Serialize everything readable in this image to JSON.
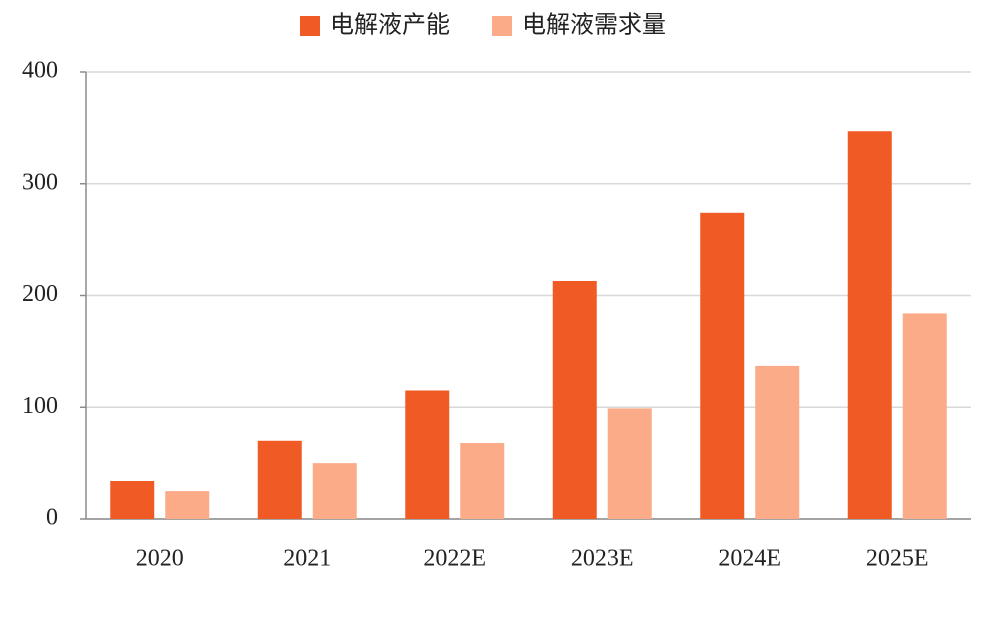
{
  "chart_data": {
    "type": "bar",
    "categories": [
      "2020",
      "2021",
      "2022E",
      "2023E",
      "2024E",
      "2025E"
    ],
    "series": [
      {
        "name": "电解液产能",
        "color": "#f05a24",
        "values": [
          34,
          70,
          115,
          213,
          274,
          347
        ]
      },
      {
        "name": "电解液需求量",
        "color": "#fcab88",
        "values": [
          25,
          50,
          68,
          99,
          137,
          184
        ]
      }
    ],
    "ylim": [
      0,
      400
    ],
    "yticks": [
      0,
      100,
      200,
      300,
      400
    ],
    "grid": true,
    "legend": "top"
  }
}
